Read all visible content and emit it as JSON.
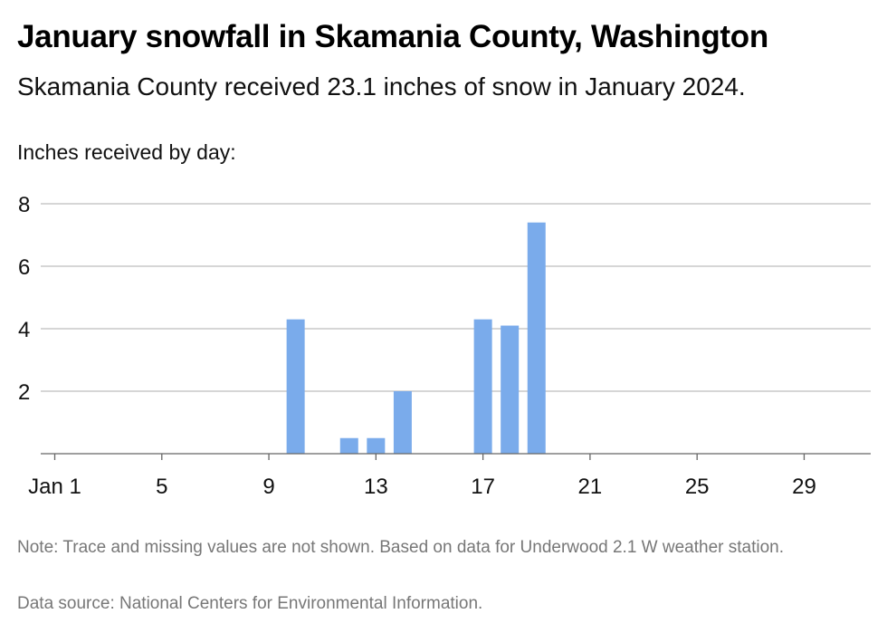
{
  "chart_data": {
    "type": "bar",
    "title": "January snowfall in Skamania County, Washington",
    "subtitle": "Skamania County received 23.1 inches of snow in January 2024.",
    "ylabel": "Inches received by day:",
    "xlabel": "",
    "x": [
      1,
      2,
      3,
      4,
      5,
      6,
      7,
      8,
      9,
      10,
      11,
      12,
      13,
      14,
      15,
      16,
      17,
      18,
      19,
      20,
      21,
      22,
      23,
      24,
      25,
      26,
      27,
      28,
      29,
      30,
      31
    ],
    "values": [
      null,
      null,
      null,
      null,
      null,
      null,
      null,
      null,
      null,
      4.3,
      null,
      0.5,
      0.5,
      2.0,
      null,
      null,
      4.3,
      4.1,
      7.4,
      null,
      null,
      null,
      null,
      null,
      null,
      null,
      null,
      null,
      null,
      null,
      null
    ],
    "x_ticks": [
      1,
      5,
      9,
      13,
      17,
      21,
      25,
      29
    ],
    "x_tick_labels": [
      "Jan 1",
      "5",
      "9",
      "13",
      "17",
      "21",
      "25",
      "29"
    ],
    "y_ticks": [
      2,
      4,
      6,
      8
    ],
    "ylim": [
      0,
      8
    ],
    "xlim": [
      1,
      31
    ],
    "grid": true,
    "bar_color": "#7aabeb"
  },
  "notes": {
    "note": "Note: Trace and missing values are not shown. Based on data for Underwood 2.1 W weather station.",
    "source": "Data source: National Centers for Environmental Information."
  }
}
